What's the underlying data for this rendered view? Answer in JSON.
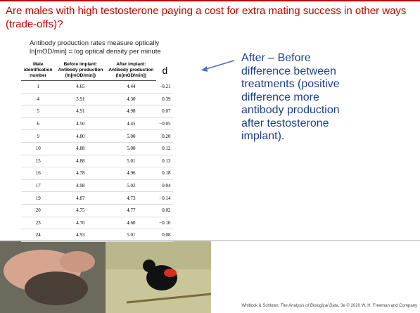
{
  "header": {
    "title": "Are males with high testosterone paying a cost for extra mating success in other ways (trade-offs)?"
  },
  "subtitle": [
    "Antibody production rates measure optically",
    "ln[mOD/min] = log optical density per minute"
  ],
  "table": {
    "columns": [
      [
        "Male",
        "identification",
        "number"
      ],
      [
        "Before implant:",
        "Antibody production",
        "(ln[mOD/min])"
      ],
      [
        "After implant:",
        "Antibody production",
        "(ln[mOD/min])"
      ],
      [
        "d"
      ]
    ],
    "rows": [
      [
        "1",
        "4.65",
        "4.44",
        "−0.21"
      ],
      [
        "4",
        "3.91",
        "4.30",
        "0.39"
      ],
      [
        "5",
        "4.91",
        "4.98",
        "0.07"
      ],
      [
        "6",
        "4.50",
        "4.45",
        "−0.05"
      ],
      [
        "9",
        "4.80",
        "5.00",
        "0.20"
      ],
      [
        "10",
        "4.88",
        "5.00",
        "0.12"
      ],
      [
        "15",
        "4.88",
        "5.01",
        "0.13"
      ],
      [
        "16",
        "4.78",
        "4.96",
        "0.18"
      ],
      [
        "17",
        "4.98",
        "5.02",
        "0.04"
      ],
      [
        "19",
        "4.87",
        "4.73",
        "−0.14"
      ],
      [
        "20",
        "4.75",
        "4.77",
        "0.02"
      ],
      [
        "23",
        "4.70",
        "4.60",
        "−0.10"
      ],
      [
        "24",
        "4.93",
        "5.01",
        "0.08"
      ]
    ]
  },
  "annotation": [
    "After – Before",
    "difference between",
    "treatments (positive",
    "difference more",
    "antibody production",
    "after testosterone",
    "implant)."
  ],
  "citation": {
    "authors": "Whitlock & Schluter, ",
    "book": "The Analysis of Biological Data",
    "rest": ", 3e © 2020 W. H. Freeman and Company"
  }
}
